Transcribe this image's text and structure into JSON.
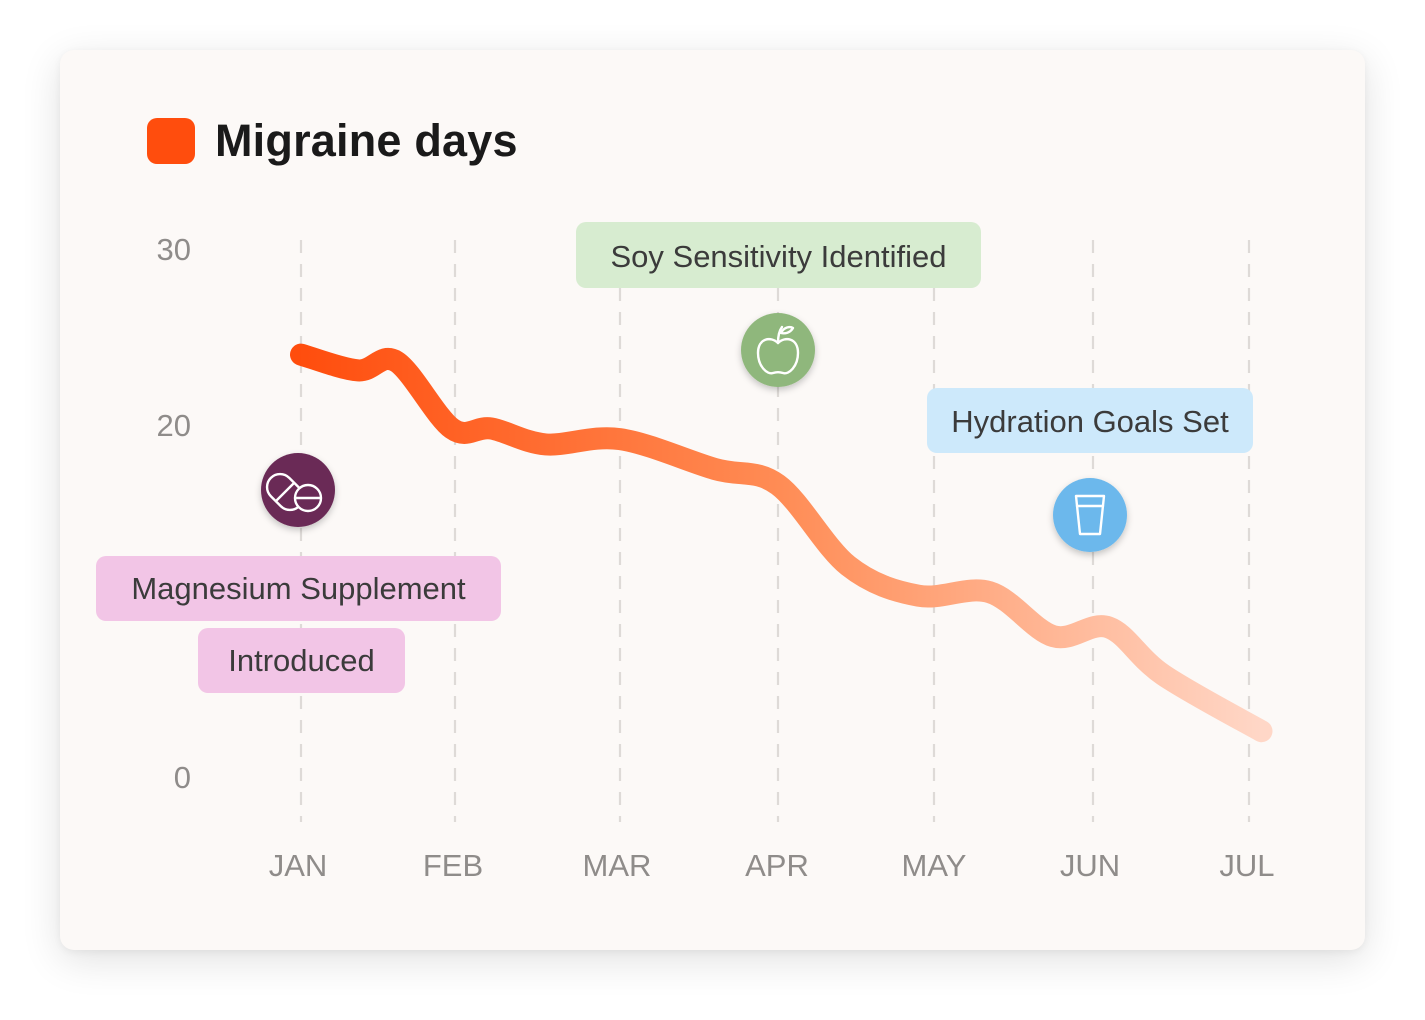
{
  "legend": {
    "label": "Migraine days",
    "color": "#ff4d0d"
  },
  "chart_data": {
    "type": "line",
    "series": [
      {
        "name": "Migraine days",
        "color_start": "#ff4d0d",
        "color_end": "#ffd7c7",
        "points": [
          {
            "x": 0.0,
            "y": 24.0
          },
          {
            "x": 0.37,
            "y": 23.1
          },
          {
            "x": 0.62,
            "y": 23.6
          },
          {
            "x": 0.98,
            "y": 19.8
          },
          {
            "x": 1.22,
            "y": 19.8
          },
          {
            "x": 1.55,
            "y": 18.9
          },
          {
            "x": 2.0,
            "y": 19.2
          },
          {
            "x": 2.6,
            "y": 17.5
          },
          {
            "x": 3.0,
            "y": 16.6
          },
          {
            "x": 3.45,
            "y": 12.0
          },
          {
            "x": 3.9,
            "y": 10.3
          },
          {
            "x": 4.35,
            "y": 10.5
          },
          {
            "x": 4.75,
            "y": 8.0
          },
          {
            "x": 5.1,
            "y": 8.5
          },
          {
            "x": 5.45,
            "y": 5.8
          },
          {
            "x": 6.08,
            "y": 2.6
          }
        ]
      }
    ],
    "x_tick_labels": [
      "JAN",
      "FEB",
      "MAR",
      "APR",
      "MAY",
      "JUN",
      "JUL"
    ],
    "y_ticks": [
      0,
      20,
      30
    ],
    "ylim": [
      0,
      30
    ],
    "grid": "vertical dashed",
    "legend_position": "top-left",
    "annotations": [
      {
        "lines": [
          "Magnesium Supplement",
          "Introduced"
        ],
        "month": "JAN",
        "icon": "pills-icon",
        "icon_color": "#6a2a57",
        "label_color": "#f2c5e6"
      },
      {
        "lines": [
          "Soy Sensitivity Identified"
        ],
        "month": "APR",
        "icon": "apple-icon",
        "icon_color": "#8fb77c",
        "label_color": "#d7ecd0"
      },
      {
        "lines": [
          "Hydration Goals Set"
        ],
        "month": "JUN",
        "icon": "glass-icon",
        "icon_color": "#6cb8ec",
        "label_color": "#cde9fb"
      }
    ]
  }
}
